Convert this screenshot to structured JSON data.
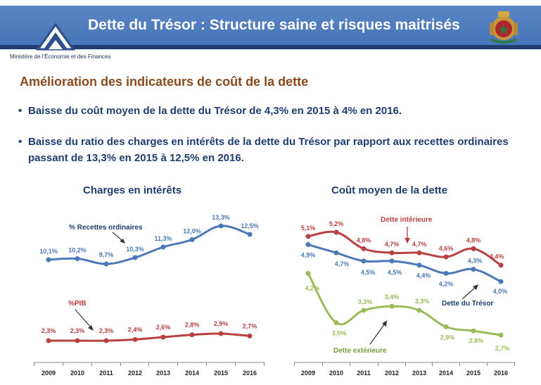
{
  "header": {
    "title": "Dette du Trésor : Structure saine et risques maitrisés",
    "ministry": "Ministère de l'Économie et des Finances"
  },
  "section_title": "Amélioration des indicateurs de coût de la dette",
  "bullets": [
    "Baisse du coût moyen de la dette du Trésor de 4,3% en 2015 à 4% en 2016.",
    "Baisse du ratio des charges en intérêts de la dette du Trésor par rapport aux recettes ordinaires passant de 13,3% en 2015 à 12,5% en 2016."
  ],
  "colors": {
    "blue": "#4a78b8",
    "red": "#b84040",
    "green": "#9bbb59",
    "header": "#4f7dbf"
  },
  "chart_data": [
    {
      "type": "line",
      "title": "Charges en intérêts",
      "categories": [
        "2009",
        "2010",
        "2011",
        "2012",
        "2013",
        "2014",
        "2015",
        "2016"
      ],
      "series": [
        {
          "name": "% Recettes ordinaires",
          "color": "#4a78b8",
          "values": [
            10.1,
            10.2,
            9.7,
            10.3,
            11.3,
            12.0,
            13.3,
            12.5
          ],
          "labels": [
            "10,1%",
            "10,2%",
            "9,7%",
            "10,3%",
            "11,3%",
            "12,0%",
            "13,3%",
            "12,5%"
          ]
        },
        {
          "name": "%PIB",
          "color": "#b84040",
          "values": [
            2.3,
            2.3,
            2.3,
            2.4,
            2.6,
            2.8,
            2.9,
            2.7
          ],
          "labels": [
            "2,3%",
            "2,3%",
            "2,3%",
            "2,4%",
            "2,6%",
            "2,8%",
            "2,9%",
            "2,7%"
          ]
        }
      ]
    },
    {
      "type": "line",
      "title": "Coût moyen de la dette",
      "categories": [
        "2009",
        "2010",
        "2011",
        "2012",
        "2013",
        "2014",
        "2015",
        "2016"
      ],
      "series": [
        {
          "name": "Dette intérieure",
          "color": "#b84040",
          "values": [
            5.1,
            5.2,
            4.8,
            4.7,
            4.7,
            4.6,
            4.8,
            4.4
          ],
          "labels": [
            "5,1%",
            "5,2%",
            "4,8%",
            "4,7%",
            "4,7%",
            "4,6%",
            "4,8%",
            "4,4%"
          ]
        },
        {
          "name": "Dette du Trésor",
          "color": "#4a78b8",
          "values": [
            4.9,
            4.7,
            4.5,
            4.5,
            4.4,
            4.2,
            4.3,
            4.0
          ],
          "labels": [
            "4,9%",
            "4,7%",
            "4,5%",
            "4,5%",
            "4,4%",
            "4,2%",
            "4,3%",
            "4,0%"
          ]
        },
        {
          "name": "Dette extérieure",
          "color": "#9bbb59",
          "values": [
            4.2,
            3.0,
            3.3,
            3.4,
            3.3,
            2.9,
            2.8,
            2.7
          ],
          "labels": [
            "4,2%",
            "3,0%",
            "3,3%",
            "3,4%",
            "3,3%",
            "2,9%",
            "2,8%",
            "2,7%"
          ]
        }
      ]
    }
  ]
}
